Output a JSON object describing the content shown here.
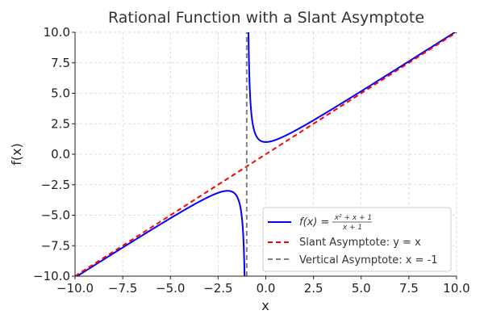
{
  "chart_data": {
    "type": "line",
    "title": "Rational Function with a Slant Asymptote",
    "xlabel": "x",
    "ylabel": "f(x)",
    "xlim": [
      -10,
      10
    ],
    "ylim": [
      -10,
      10
    ],
    "grid": true,
    "grid_style": "dashed",
    "legend_position": "lower right",
    "x_ticks": [
      "−10.0",
      "−7.5",
      "−5.0",
      "−2.5",
      "0.0",
      "2.5",
      "5.0",
      "7.5",
      "10.0"
    ],
    "y_ticks": [
      "10.0",
      "7.5",
      "5.0",
      "2.5",
      "0.0",
      "−2.5",
      "−5.0",
      "−7.5",
      "−10.0"
    ],
    "series": [
      {
        "name": "f(x) = (x^2 + x + 1)/(x + 1)",
        "color": "#0000ff",
        "style": "solid",
        "function": "(x^2 + x + 1)/(x + 1)",
        "sample_points": [
          {
            "x": -10,
            "y": -10.11
          },
          {
            "x": -7.5,
            "y": -7.65
          },
          {
            "x": -5,
            "y": -5.25
          },
          {
            "x": -3,
            "y": -3.5
          },
          {
            "x": -2,
            "y": -3.0
          },
          {
            "x": -1.5,
            "y": -3.5
          },
          {
            "x": -1.2,
            "y": -6.2
          },
          {
            "x": -0.9,
            "y": 9.1
          },
          {
            "x": -0.5,
            "y": 1.5
          },
          {
            "x": 0,
            "y": 1.0
          },
          {
            "x": 1,
            "y": 1.5
          },
          {
            "x": 2.5,
            "y": 2.79
          },
          {
            "x": 5,
            "y": 5.17
          },
          {
            "x": 7.5,
            "y": 7.62
          },
          {
            "x": 10,
            "y": 10.09
          }
        ]
      },
      {
        "name": "Slant Asymptote: y = x",
        "color": "#ff0000",
        "style": "dashed",
        "function": "x",
        "sample_points": [
          {
            "x": -10,
            "y": -10
          },
          {
            "x": 10,
            "y": 10
          }
        ]
      },
      {
        "name": "Vertical Asymptote: x = -1",
        "color": "#808080",
        "style": "dashed",
        "function": "x = -1",
        "sample_points": [
          {
            "x": -1,
            "y": -10
          },
          {
            "x": -1,
            "y": 10
          }
        ]
      }
    ]
  },
  "legend": {
    "items": [
      {
        "label_prefix": "f(x) = ",
        "num": "x² + x + 1",
        "den": "x + 1",
        "color": "#0000ff",
        "style": "solid"
      },
      {
        "label": "Slant Asymptote: y = x",
        "color": "#ff0000",
        "style": "dashed"
      },
      {
        "label": "Vertical Asymptote: x = -1",
        "color": "#808080",
        "style": "dashed"
      }
    ]
  }
}
